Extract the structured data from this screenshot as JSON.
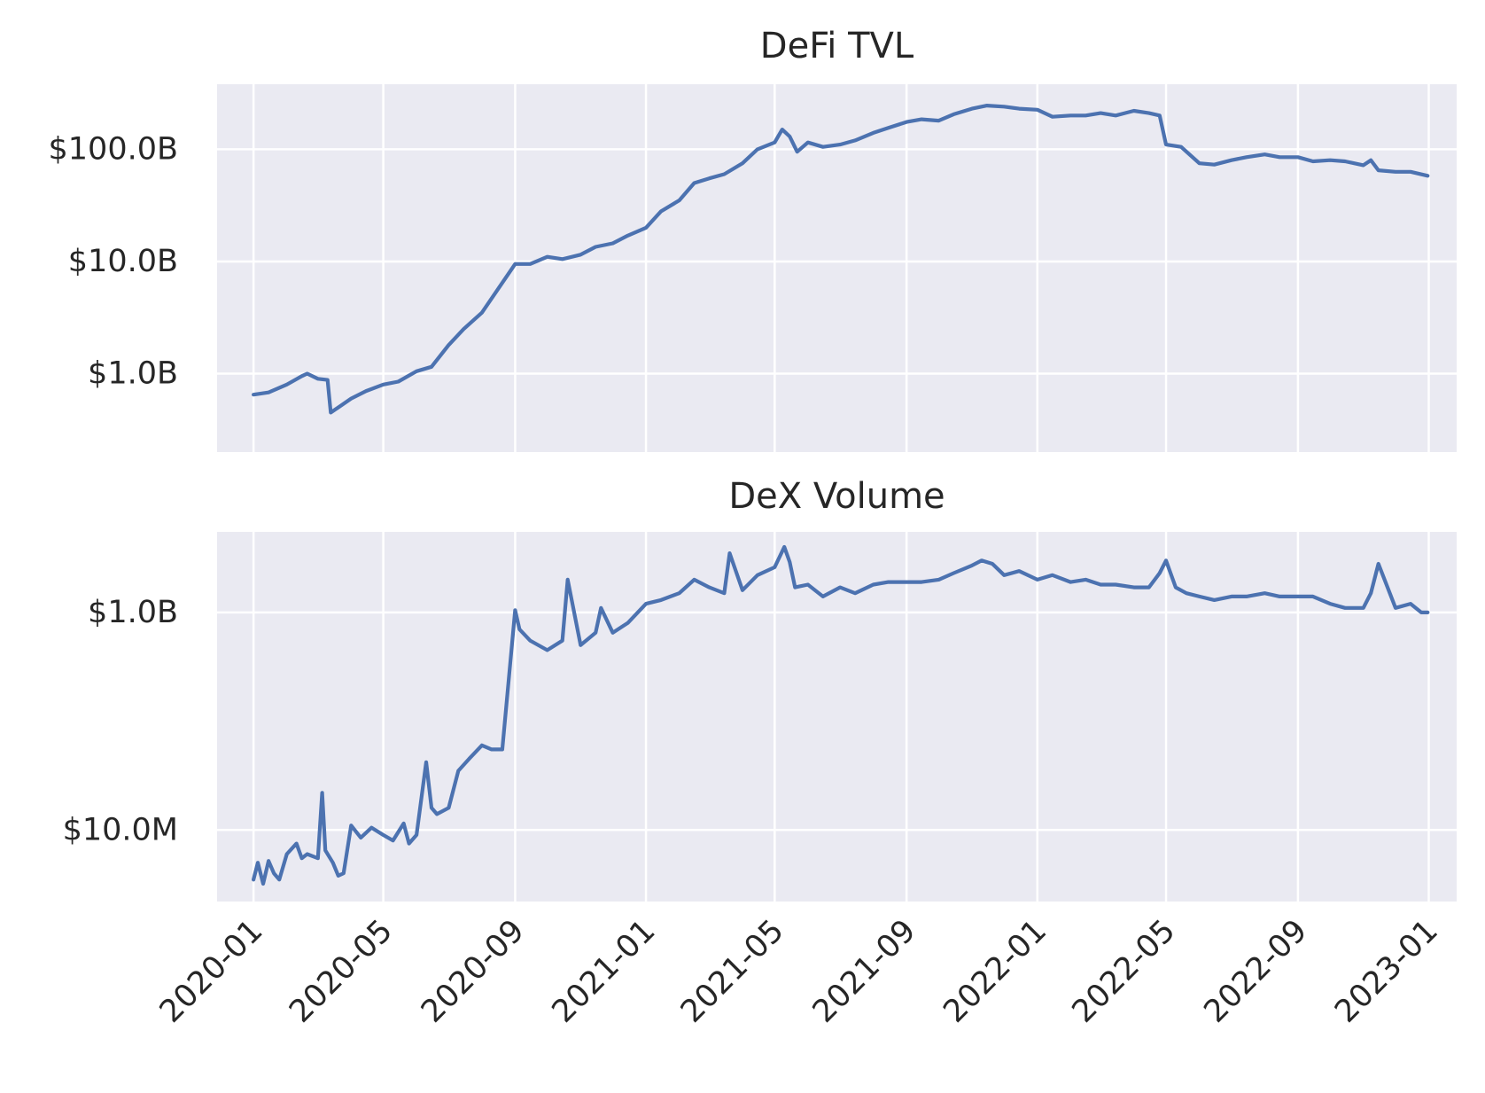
{
  "chart_data": [
    {
      "type": "line",
      "title": "DeFi TVL",
      "xlabel": "",
      "ylabel": "",
      "y_scale": "log",
      "grid": true,
      "color": "#4c72b0",
      "background": "#eaeaf2",
      "x_range": [
        "2019-11-28",
        "2023-01-27"
      ],
      "ylim": [
        0.2,
        380
      ],
      "y_ticks": [
        {
          "value": 1,
          "label": "$1.0B"
        },
        {
          "value": 10,
          "label": "$10.0B"
        },
        {
          "value": 100,
          "label": "$100.0B"
        }
      ],
      "y_unit": "billions USD",
      "series": [
        {
          "x": [
            "2020-01-01",
            "2020-01-15",
            "2020-02-01",
            "2020-02-15",
            "2020-02-20",
            "2020-03-01",
            "2020-03-10",
            "2020-03-13",
            "2020-03-20",
            "2020-04-01",
            "2020-04-15",
            "2020-05-01",
            "2020-05-15",
            "2020-06-01",
            "2020-06-15",
            "2020-07-01",
            "2020-07-15",
            "2020-08-01",
            "2020-08-15",
            "2020-09-01",
            "2020-09-15",
            "2020-10-01",
            "2020-10-15",
            "2020-11-01",
            "2020-11-15",
            "2020-12-01",
            "2020-12-15",
            "2021-01-01",
            "2021-01-15",
            "2021-02-01",
            "2021-02-15",
            "2021-03-01",
            "2021-03-15",
            "2021-04-01",
            "2021-04-15",
            "2021-05-01",
            "2021-05-08",
            "2021-05-15",
            "2021-05-22",
            "2021-06-01",
            "2021-06-15",
            "2021-07-01",
            "2021-07-15",
            "2021-08-01",
            "2021-08-15",
            "2021-09-01",
            "2021-09-15",
            "2021-10-01",
            "2021-10-15",
            "2021-11-01",
            "2021-11-15",
            "2021-12-01",
            "2021-12-15",
            "2022-01-01",
            "2022-01-15",
            "2022-02-01",
            "2022-02-15",
            "2022-03-01",
            "2022-03-15",
            "2022-04-01",
            "2022-04-15",
            "2022-04-25",
            "2022-05-01",
            "2022-05-15",
            "2022-06-01",
            "2022-06-15",
            "2022-07-01",
            "2022-07-15",
            "2022-08-01",
            "2022-08-15",
            "2022-09-01",
            "2022-09-15",
            "2022-10-01",
            "2022-10-15",
            "2022-11-01",
            "2022-11-08",
            "2022-11-15",
            "2022-12-01",
            "2022-12-15",
            "2022-12-31"
          ],
          "y": [
            0.65,
            0.68,
            0.8,
            0.95,
            1.0,
            0.9,
            0.88,
            0.45,
            0.5,
            0.6,
            0.7,
            0.8,
            0.85,
            1.05,
            1.15,
            1.8,
            2.5,
            3.5,
            5.5,
            9.5,
            9.5,
            11,
            10.5,
            11.5,
            13.5,
            14.5,
            17,
            20,
            28,
            35,
            50,
            55,
            60,
            75,
            100,
            115,
            150,
            130,
            95,
            115,
            105,
            110,
            120,
            140,
            155,
            175,
            185,
            180,
            205,
            230,
            245,
            240,
            230,
            225,
            195,
            200,
            200,
            210,
            200,
            220,
            210,
            200,
            110,
            105,
            75,
            73,
            80,
            85,
            90,
            85,
            85,
            78,
            80,
            78,
            72,
            80,
            65,
            63,
            63,
            58
          ]
        }
      ]
    },
    {
      "type": "line",
      "title": "DeX Volume",
      "xlabel": "",
      "ylabel": "",
      "y_scale": "log",
      "grid": true,
      "color": "#4c72b0",
      "background": "#eaeaf2",
      "x_range": [
        "2019-11-28",
        "2023-01-27"
      ],
      "ylim": [
        2.2,
        5500
      ],
      "y_ticks": [
        {
          "value": 10,
          "label": "$10.0M"
        },
        {
          "value": 1000,
          "label": "$1.0B"
        }
      ],
      "y_unit": "millions USD",
      "x_ticks": [
        "2020-01",
        "2020-05",
        "2020-09",
        "2021-01",
        "2021-05",
        "2021-09",
        "2022-01",
        "2022-05",
        "2022-09",
        "2023-01"
      ],
      "series": [
        {
          "x": [
            "2020-01-01",
            "2020-01-05",
            "2020-01-10",
            "2020-01-15",
            "2020-01-20",
            "2020-01-25",
            "2020-02-01",
            "2020-02-10",
            "2020-02-15",
            "2020-02-20",
            "2020-03-01",
            "2020-03-05",
            "2020-03-08",
            "2020-03-15",
            "2020-03-20",
            "2020-03-25",
            "2020-04-01",
            "2020-04-10",
            "2020-04-20",
            "2020-05-01",
            "2020-05-10",
            "2020-05-20",
            "2020-05-25",
            "2020-06-01",
            "2020-06-10",
            "2020-06-15",
            "2020-06-20",
            "2020-07-01",
            "2020-07-10",
            "2020-07-20",
            "2020-08-01",
            "2020-08-10",
            "2020-08-20",
            "2020-09-01",
            "2020-09-05",
            "2020-09-15",
            "2020-10-01",
            "2020-10-15",
            "2020-10-20",
            "2020-11-01",
            "2020-11-15",
            "2020-11-20",
            "2020-12-01",
            "2020-12-15",
            "2021-01-01",
            "2021-01-15",
            "2021-02-01",
            "2021-02-15",
            "2021-03-01",
            "2021-03-15",
            "2021-03-20",
            "2021-04-01",
            "2021-04-15",
            "2021-05-01",
            "2021-05-10",
            "2021-05-15",
            "2021-05-20",
            "2021-06-01",
            "2021-06-15",
            "2021-07-01",
            "2021-07-15",
            "2021-08-01",
            "2021-08-15",
            "2021-09-01",
            "2021-09-15",
            "2021-10-01",
            "2021-10-15",
            "2021-11-01",
            "2021-11-10",
            "2021-11-20",
            "2021-12-01",
            "2021-12-15",
            "2022-01-01",
            "2022-01-15",
            "2022-02-01",
            "2022-02-15",
            "2022-03-01",
            "2022-03-15",
            "2022-04-01",
            "2022-04-15",
            "2022-04-25",
            "2022-05-01",
            "2022-05-10",
            "2022-05-20",
            "2022-06-01",
            "2022-06-15",
            "2022-07-01",
            "2022-07-15",
            "2022-08-01",
            "2022-08-15",
            "2022-09-01",
            "2022-09-15",
            "2022-10-01",
            "2022-10-15",
            "2022-11-01",
            "2022-11-08",
            "2022-11-15",
            "2022-12-01",
            "2022-12-15",
            "2022-12-25",
            "2022-12-31"
          ],
          "y": [
            3.5,
            5.0,
            3.2,
            5.2,
            4.0,
            3.5,
            6.0,
            7.5,
            5.5,
            6.0,
            5.5,
            22,
            6.5,
            5.0,
            3.8,
            4.0,
            11,
            8.5,
            10.5,
            9.0,
            8.0,
            11.5,
            7.5,
            9.0,
            42,
            16,
            14,
            16,
            35,
            45,
            60,
            55,
            55,
            1050,
            700,
            550,
            450,
            550,
            2000,
            500,
            650,
            1100,
            650,
            800,
            1200,
            1300,
            1500,
            2000,
            1700,
            1500,
            3500,
            1600,
            2200,
            2600,
            4000,
            2900,
            1700,
            1800,
            1400,
            1700,
            1500,
            1800,
            1900,
            1900,
            1900,
            2000,
            2300,
            2700,
            3000,
            2800,
            2200,
            2400,
            2000,
            2200,
            1900,
            2000,
            1800,
            1800,
            1700,
            1700,
            2300,
            3000,
            1700,
            1500,
            1400,
            1300,
            1400,
            1400,
            1500,
            1400,
            1400,
            1400,
            1200,
            1100,
            1100,
            1500,
            2800,
            1100,
            1200,
            1000,
            1000
          ]
        }
      ]
    }
  ]
}
